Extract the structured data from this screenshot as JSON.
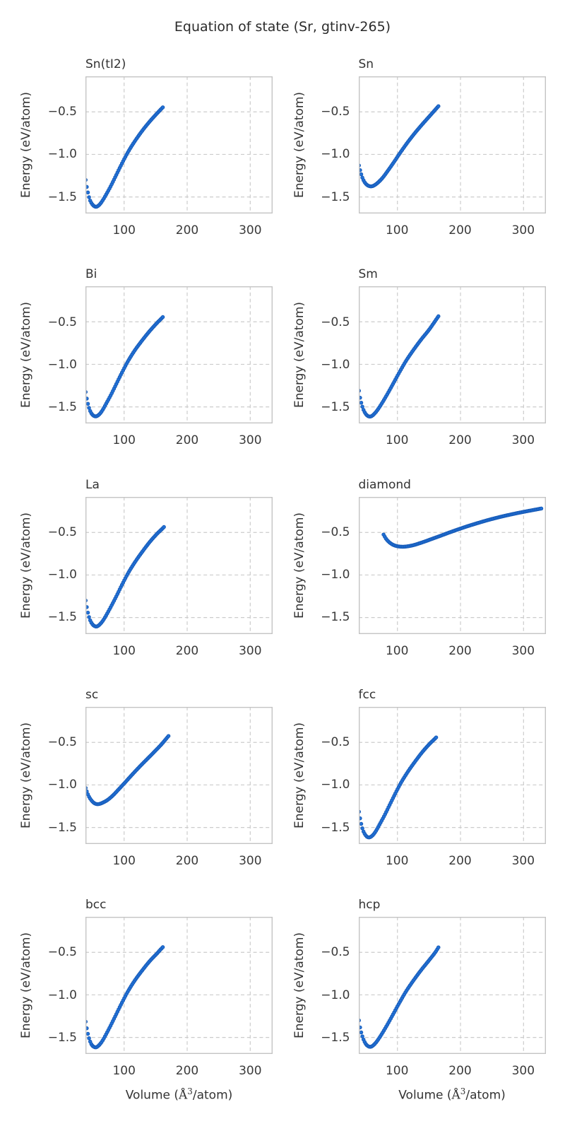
{
  "figure": {
    "title": "Equation of state (Sr, gtinv-265)"
  },
  "chart_data": {
    "type": "scatter",
    "grid": "dashed",
    "legend": "none",
    "xlabel": {
      "text": "Volume (Å³/atom)",
      "pre": "Volume (",
      "symbol": "Å",
      "sup": "3",
      "post": "/atom)"
    },
    "ylabel": "Energy (eV/atom)",
    "xlim": [
      38.7,
      335.5
    ],
    "ylim": [
      -1.694,
      -0.083
    ],
    "xticks": {
      "values": [
        100,
        200,
        300
      ],
      "labels": [
        "100",
        "200",
        "300"
      ]
    },
    "yticks": {
      "values": [
        -0.5,
        -1.0,
        -1.5
      ],
      "labels": [
        "−0.5",
        "−1.0",
        "−1.5"
      ]
    },
    "point_step_volume": 1.8,
    "subplots": [
      {
        "title": "Sn(tI2)",
        "anchors_v": [
          39,
          41,
          43,
          45.5,
          48.5,
          52,
          56,
          61,
          66,
          72,
          79,
          87,
          96,
          106,
          117,
          129,
          141,
          152,
          159,
          163
        ],
        "anchors_e": [
          -1.3,
          -1.39,
          -1.46,
          -1.53,
          -1.575,
          -1.605,
          -1.615,
          -1.59,
          -1.54,
          -1.465,
          -1.37,
          -1.25,
          -1.115,
          -0.975,
          -0.845,
          -0.72,
          -0.61,
          -0.52,
          -0.465,
          -0.435
        ]
      },
      {
        "title": "Sn",
        "anchors_v": [
          39,
          41.5,
          44,
          47,
          50.5,
          54.5,
          59,
          64,
          70,
          77,
          85,
          94,
          104,
          115,
          127,
          139,
          151,
          160,
          166
        ],
        "anchors_e": [
          -1.13,
          -1.205,
          -1.265,
          -1.315,
          -1.35,
          -1.37,
          -1.375,
          -1.36,
          -1.325,
          -1.27,
          -1.19,
          -1.095,
          -0.985,
          -0.87,
          -0.755,
          -0.65,
          -0.55,
          -0.475,
          -0.425
        ]
      },
      {
        "title": "Bi",
        "anchors_v": [
          39,
          41,
          43,
          45.5,
          48.5,
          52,
          56,
          61,
          66,
          72,
          79,
          87,
          96,
          106,
          117,
          129,
          141,
          152,
          158,
          162
        ],
        "anchors_e": [
          -1.325,
          -1.41,
          -1.475,
          -1.535,
          -1.58,
          -1.605,
          -1.61,
          -1.585,
          -1.535,
          -1.455,
          -1.36,
          -1.24,
          -1.105,
          -0.965,
          -0.835,
          -0.715,
          -0.605,
          -0.515,
          -0.47,
          -0.44
        ]
      },
      {
        "title": "Sm",
        "anchors_v": [
          39,
          41,
          43.5,
          46.5,
          50,
          54,
          58.5,
          63.5,
          69,
          76,
          84,
          93,
          103,
          114,
          126,
          138,
          150,
          159,
          165
        ],
        "anchors_e": [
          -1.31,
          -1.4,
          -1.475,
          -1.54,
          -1.585,
          -1.61,
          -1.61,
          -1.58,
          -1.53,
          -1.45,
          -1.35,
          -1.23,
          -1.095,
          -0.955,
          -0.825,
          -0.705,
          -0.595,
          -0.5,
          -0.435
        ]
      },
      {
        "title": "La",
        "anchors_v": [
          39,
          41,
          43,
          45.5,
          48.5,
          52,
          56.5,
          61.5,
          67,
          73,
          80,
          88,
          97,
          107,
          118,
          130,
          142,
          153,
          160,
          164
        ],
        "anchors_e": [
          -1.3,
          -1.385,
          -1.455,
          -1.52,
          -1.565,
          -1.595,
          -1.605,
          -1.58,
          -1.53,
          -1.455,
          -1.36,
          -1.245,
          -1.11,
          -0.97,
          -0.84,
          -0.715,
          -0.6,
          -0.51,
          -0.46,
          -0.43
        ]
      },
      {
        "title": "diamond",
        "anchors_v": [
          78,
          82,
          87,
          93,
          100,
          108,
          116,
          125,
          134,
          144,
          155,
          167,
          180,
          194,
          209,
          225,
          242,
          260,
          278,
          296,
          313,
          329
        ],
        "anchors_e": [
          -0.525,
          -0.575,
          -0.615,
          -0.645,
          -0.662,
          -0.668,
          -0.663,
          -0.65,
          -0.63,
          -0.605,
          -0.575,
          -0.543,
          -0.507,
          -0.47,
          -0.432,
          -0.395,
          -0.358,
          -0.323,
          -0.292,
          -0.264,
          -0.24,
          -0.218
        ]
      },
      {
        "title": "sc",
        "anchors_v": [
          39,
          41.5,
          44.5,
          48,
          52,
          56.5,
          61.5,
          67,
          74,
          82,
          91,
          101,
          112,
          124,
          136,
          148,
          159,
          167,
          171
        ],
        "anchors_e": [
          -1.035,
          -1.09,
          -1.14,
          -1.18,
          -1.21,
          -1.225,
          -1.222,
          -1.205,
          -1.175,
          -1.125,
          -1.055,
          -0.975,
          -0.885,
          -0.79,
          -0.7,
          -0.61,
          -0.525,
          -0.455,
          -0.42
        ]
      },
      {
        "title": "fcc",
        "anchors_v": [
          39,
          41,
          43,
          45.5,
          48.5,
          52,
          56,
          61,
          66,
          72,
          79,
          87,
          96,
          106,
          117,
          129,
          141,
          152,
          159,
          163
        ],
        "anchors_e": [
          -1.315,
          -1.4,
          -1.47,
          -1.535,
          -1.58,
          -1.61,
          -1.615,
          -1.59,
          -1.54,
          -1.46,
          -1.365,
          -1.245,
          -1.11,
          -0.97,
          -0.84,
          -0.715,
          -0.6,
          -0.51,
          -0.46,
          -0.43
        ]
      },
      {
        "title": "bcc",
        "anchors_v": [
          39,
          41,
          43,
          45.5,
          48.5,
          52,
          56,
          61,
          66,
          72,
          79,
          87,
          96,
          106,
          117,
          129,
          141,
          152,
          158,
          162
        ],
        "anchors_e": [
          -1.315,
          -1.4,
          -1.47,
          -1.535,
          -1.585,
          -1.61,
          -1.615,
          -1.585,
          -1.535,
          -1.455,
          -1.355,
          -1.235,
          -1.1,
          -0.96,
          -0.83,
          -0.71,
          -0.6,
          -0.515,
          -0.465,
          -0.435
        ]
      },
      {
        "title": "hcp",
        "anchors_v": [
          39,
          41,
          43.5,
          46.5,
          50,
          54,
          58.5,
          63.5,
          69,
          76,
          84,
          93,
          103,
          114,
          126,
          138,
          150,
          160,
          166
        ],
        "anchors_e": [
          -1.3,
          -1.39,
          -1.465,
          -1.53,
          -1.578,
          -1.605,
          -1.608,
          -1.58,
          -1.53,
          -1.45,
          -1.35,
          -1.23,
          -1.095,
          -0.955,
          -0.825,
          -0.705,
          -0.595,
          -0.5,
          -0.43
        ]
      }
    ]
  },
  "style": {
    "marker_fill": "#2272d8",
    "marker_edge": "#1659b5",
    "grid_color": "#cccccc",
    "spine_color": "#c4c4c4",
    "text_color": "#333333",
    "tick_text_color": "#3a3a3a",
    "title_text_color": "#2b2b2b",
    "background": "#ffffff"
  }
}
